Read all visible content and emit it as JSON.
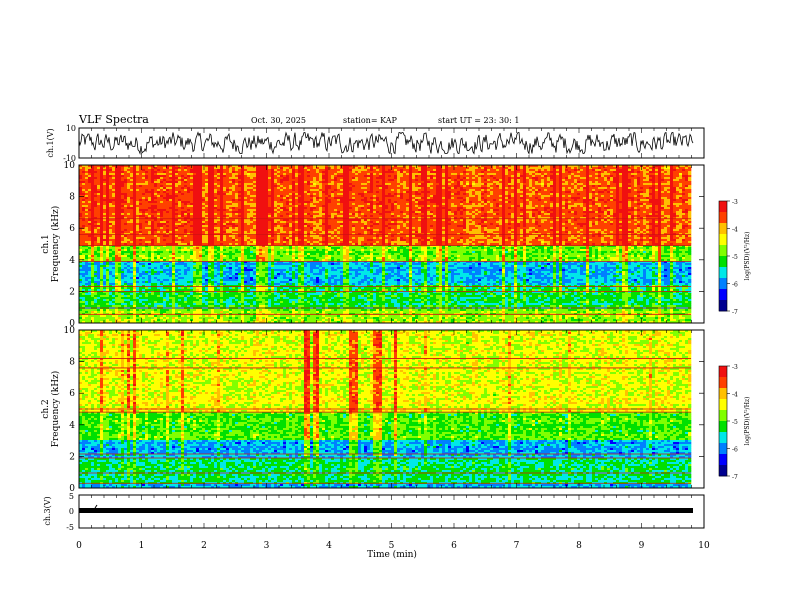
{
  "header": {
    "title": "VLF Spectra",
    "date": "Oct. 30, 2025",
    "station": "station= KAP",
    "start": "start  UT  =   23: 30: 1"
  },
  "colors": {
    "spectrum": [
      "#000090",
      "#0000ff",
      "#0080ff",
      "#00e8e8",
      "#00e000",
      "#80ff00",
      "#ffff00",
      "#ffc000",
      "#ff4000",
      "#f01010",
      "#ffffff"
    ]
  },
  "chart_data": [
    {
      "type": "line",
      "name": "ch1-waveform",
      "ylabel": "ch.1(V)",
      "ylim": [
        -10,
        10
      ],
      "yticks": [
        "10",
        "-10"
      ],
      "xlim": [
        0,
        10
      ],
      "series": [
        {
          "name": "ch.1",
          "amplitude_v": 5
        }
      ]
    },
    {
      "type": "heatmap",
      "name": "ch1-spectrogram",
      "ylabel": "ch.1\nFrequency  (kHz)",
      "ylim": [
        0,
        10
      ],
      "yticks": [
        "0",
        "2",
        "4",
        "6",
        "8",
        "10"
      ],
      "xlim": [
        0,
        9.8
      ],
      "bands": [
        {
          "from": 0,
          "to": 0.9,
          "level": 0.55
        },
        {
          "from": 0.9,
          "to": 2.4,
          "level": 0.42
        },
        {
          "from": 2.4,
          "to": 3.9,
          "level": 0.3
        },
        {
          "from": 3.9,
          "to": 5.0,
          "level": 0.52
        },
        {
          "from": 5.0,
          "to": 10.0,
          "level": 0.83
        }
      ],
      "colorbar": {
        "label": "log(PSD)(V²/Hz)",
        "ticks": [
          "-3",
          "-4",
          "-5",
          "-6",
          "-7"
        ],
        "range": [
          -7,
          -3
        ]
      }
    },
    {
      "type": "heatmap",
      "name": "ch2-spectrogram",
      "ylabel": "ch.2\nFrequency  (kHz)",
      "ylim": [
        0,
        10
      ],
      "yticks": [
        "0",
        "2",
        "4",
        "6",
        "8",
        "10"
      ],
      "xlim": [
        0,
        9.8
      ],
      "bands": [
        {
          "from": 0,
          "to": 0.3,
          "level": 0.3
        },
        {
          "from": 0.3,
          "to": 1.9,
          "level": 0.42
        },
        {
          "from": 1.9,
          "to": 3.0,
          "level": 0.3
        },
        {
          "from": 3.0,
          "to": 4.8,
          "level": 0.5
        },
        {
          "from": 4.8,
          "to": 10.0,
          "level": 0.64
        }
      ],
      "colorbar": {
        "label": "log(PSD)(V²/Hz)",
        "ticks": [
          "-3",
          "-4",
          "-5",
          "-6",
          "-7"
        ],
        "range": [
          -7,
          -3
        ]
      }
    },
    {
      "type": "line",
      "name": "ch3-waveform",
      "ylabel": "ch.3(V)",
      "ylim": [
        -5,
        5
      ],
      "yticks": [
        "5",
        "0",
        "-5"
      ],
      "xlim": [
        0,
        10
      ],
      "xlabel": "Time  (min)",
      "xticks": [
        "0",
        "1",
        "2",
        "3",
        "4",
        "5",
        "6",
        "7",
        "8",
        "9",
        "10"
      ],
      "series": [
        {
          "name": "ch.3",
          "level_v": 0
        }
      ]
    }
  ]
}
